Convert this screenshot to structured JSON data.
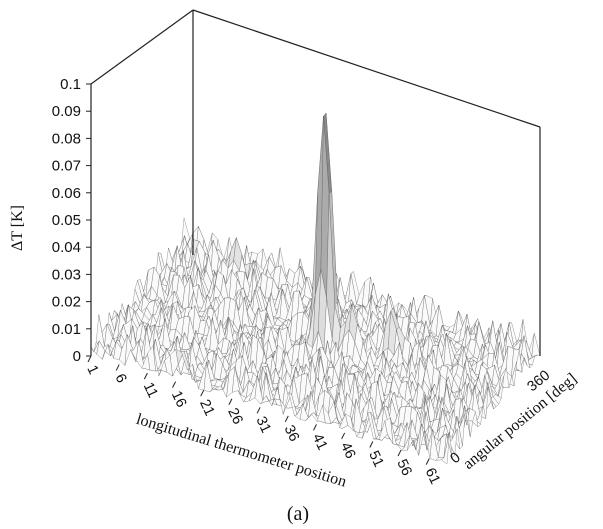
{
  "chart_data": {
    "type": "surface3d",
    "caption": "(a)",
    "zlabel": "ΔT  [K]",
    "xlabel": "longitudinal thermometer position",
    "ylabel": "angular position [deg]",
    "z_ticks": [
      "0",
      "0.01",
      "0.02",
      "0.03",
      "0.04",
      "0.05",
      "0.06",
      "0.07",
      "0.08",
      "0.09",
      "0.1"
    ],
    "x_ticks": [
      "1",
      "6",
      "11",
      "16",
      "21",
      "26",
      "31",
      "36",
      "41",
      "46",
      "51",
      "56",
      "61"
    ],
    "y_ticks": [
      "0",
      "360"
    ],
    "zlim": [
      0,
      0.1
    ],
    "xlim": [
      1,
      64
    ],
    "ylim": [
      0,
      360
    ],
    "noise_level": 0.012,
    "peaks": [
      {
        "x": 33,
        "y": 205,
        "z": 0.098
      },
      {
        "x": 44,
        "y": 225,
        "z": 0.022
      },
      {
        "x": 38,
        "y": 200,
        "z": 0.02
      },
      {
        "x": 13,
        "y": 300,
        "z": 0.018
      }
    ]
  }
}
